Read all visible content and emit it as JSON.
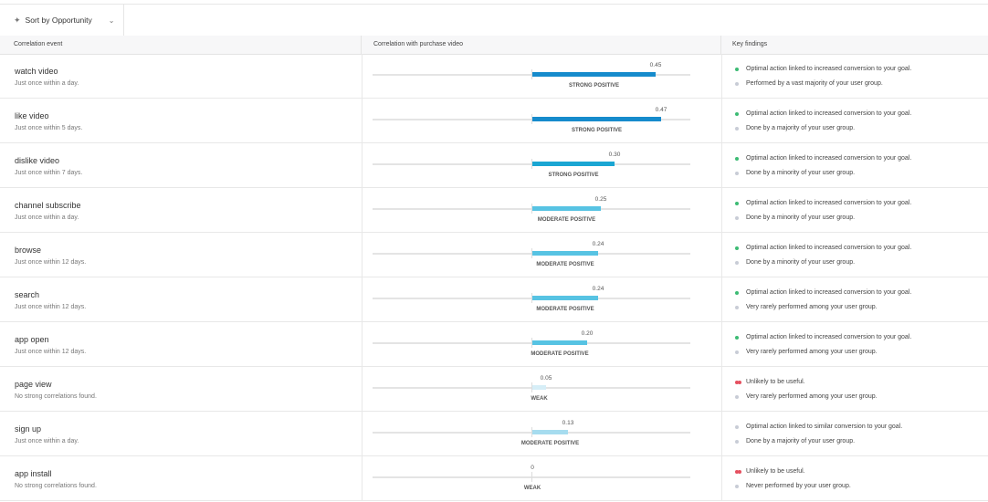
{
  "toolbar": {
    "sort_button": "Sort by Opportunity"
  },
  "table": {
    "headers": [
      "Correlation event",
      "Correlation with purchase video",
      "Key findings"
    ],
    "rows": [
      {
        "event": "watch video",
        "frequency": "Just once within a day.",
        "correlation": 0.45,
        "correlation_label": "0.45",
        "strength": "STRONG POSITIVE",
        "color": "#168bcc",
        "findings": [
          {
            "text": "Optimal action linked to increased conversion to your goal.",
            "color": "#3dbb74"
          },
          {
            "text": "Performed by a vast majority of your user group.",
            "color": "#c8ccd6"
          }
        ]
      },
      {
        "event": "like video",
        "frequency": "Just once within 5 days.",
        "correlation": 0.47,
        "correlation_label": "0.47",
        "strength": "STRONG POSITIVE",
        "color": "#168bcc",
        "findings": [
          {
            "text": "Optimal action linked to increased conversion to your goal.",
            "color": "#3dbb74"
          },
          {
            "text": "Done by a majority of your user group.",
            "color": "#c8ccd6"
          }
        ]
      },
      {
        "event": "dislike video",
        "frequency": "Just once within 7 days.",
        "correlation": 0.3,
        "correlation_label": "0.30",
        "strength": "STRONG POSITIVE",
        "color": "#1ba6d3",
        "findings": [
          {
            "text": "Optimal action linked to increased conversion to your goal.",
            "color": "#3dbb74"
          },
          {
            "text": "Done by a minority of your user group.",
            "color": "#c8ccd6"
          }
        ]
      },
      {
        "event": "channel subscribe",
        "frequency": "Just once within a day.",
        "correlation": 0.25,
        "correlation_label": "0.25",
        "strength": "MODERATE POSITIVE",
        "color": "#57c3e3",
        "findings": [
          {
            "text": "Optimal action linked to increased conversion to your goal.",
            "color": "#3dbb74"
          },
          {
            "text": "Done by a minority of your user group.",
            "color": "#c8ccd6"
          }
        ]
      },
      {
        "event": "browse",
        "frequency": "Just once within 12 days.",
        "correlation": 0.24,
        "correlation_label": "0.24",
        "strength": "MODERATE POSITIVE",
        "color": "#57c3e3",
        "findings": [
          {
            "text": "Optimal action linked to increased conversion to your goal.",
            "color": "#3dbb74"
          },
          {
            "text": "Done by a minority of your user group.",
            "color": "#c8ccd6"
          }
        ]
      },
      {
        "event": "search",
        "frequency": "Just once within 12 days.",
        "correlation": 0.24,
        "correlation_label": "0.24",
        "strength": "MODERATE POSITIVE",
        "color": "#57c3e3",
        "findings": [
          {
            "text": "Optimal action linked to increased conversion to your goal.",
            "color": "#3dbb74"
          },
          {
            "text": "Very rarely performed among your user group.",
            "color": "#c8ccd6"
          }
        ]
      },
      {
        "event": "app open",
        "frequency": "Just once within 12 days.",
        "correlation": 0.2,
        "correlation_label": "0.20",
        "strength": "MODERATE POSITIVE",
        "color": "#57c3e3",
        "findings": [
          {
            "text": "Optimal action linked to increased conversion to your goal.",
            "color": "#3dbb74"
          },
          {
            "text": "Very rarely performed among your user group.",
            "color": "#c8ccd6"
          }
        ]
      },
      {
        "event": "page view",
        "frequency": "No strong correlations found.",
        "correlation": 0.05,
        "correlation_label": "0.05",
        "strength": "WEAK",
        "color": "#d6eef7",
        "findings": [
          {
            "text": "Unlikely to be useful.",
            "color": "#e5505f"
          },
          {
            "text": "Very rarely performed among your user group.",
            "color": "#c8ccd6"
          }
        ]
      },
      {
        "event": "sign up",
        "frequency": "Just once within a day.",
        "correlation": 0.13,
        "correlation_label": "0.13",
        "strength": "MODERATE POSITIVE",
        "color": "#a6dcef",
        "findings": [
          {
            "text": "Optimal action linked to similar conversion to your goal.",
            "color": "#c8ccd6"
          },
          {
            "text": "Done by a majority of your user group.",
            "color": "#c8ccd6"
          }
        ]
      },
      {
        "event": "app install",
        "frequency": "No strong correlations found.",
        "correlation": 0,
        "correlation_label": "0",
        "strength": "WEAK",
        "color": "#d6eef7",
        "findings": [
          {
            "text": "Unlikely to be useful.",
            "color": "#e5505f"
          },
          {
            "text": "Never performed by your user group.",
            "color": "#c8ccd6"
          }
        ]
      }
    ]
  }
}
